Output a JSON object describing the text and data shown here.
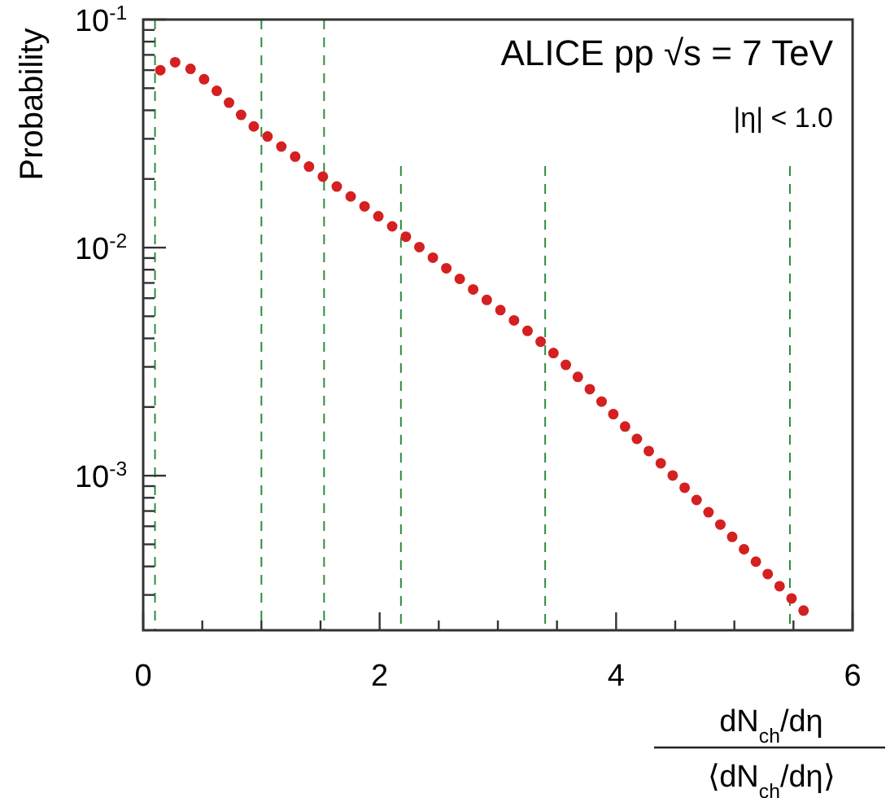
{
  "chart_data": {
    "type": "line",
    "ylabel": "Probability",
    "xlabel": "dN$_{ch}$/dη\n⟨dN$_{ch}$/dη⟩",
    "log": "y",
    "grid": false,
    "line_style": "dotted",
    "marker": "none",
    "xlim": [
      0,
      6
    ],
    "ylim": [
      0.00021,
      0.1
    ],
    "xticks": [
      0,
      {
        "value": 0.5,
        "label": null
      },
      {
        "value": 1,
        "label": null
      },
      {
        "value": 1.5,
        "label": null
      },
      2,
      {
        "value": 2.5,
        "label": null
      },
      {
        "value": 3,
        "label": null
      },
      {
        "value": 3.5,
        "label": null
      },
      4,
      {
        "value": 4.5,
        "label": null
      },
      {
        "value": 5,
        "label": null
      },
      {
        "value": 5.5,
        "label": null
      },
      6
    ],
    "yticks": [
      {
        "value": 0.0003,
        "label": null
      },
      {
        "value": 0.0004,
        "label": null
      },
      {
        "value": 0.0005,
        "label": null
      },
      {
        "value": 0.0006,
        "label": null
      },
      {
        "value": 0.0007,
        "label": null
      },
      {
        "value": 0.0008,
        "label": null
      },
      {
        "value": 0.0009,
        "label": null
      },
      {
        "value": 0.001,
        "label": "10$^{-3}$"
      },
      {
        "value": 0.002,
        "label": null
      },
      {
        "value": 0.003,
        "label": null
      },
      {
        "value": 0.004,
        "label": null
      },
      {
        "value": 0.005,
        "label": null
      },
      {
        "value": 0.006,
        "label": null
      },
      {
        "value": 0.007,
        "label": null
      },
      {
        "value": 0.008,
        "label": null
      },
      {
        "value": 0.009,
        "label": null
      },
      {
        "value": 0.01,
        "label": "10$^{-2}$"
      },
      {
        "value": 0.02,
        "label": null
      },
      {
        "value": 0.03,
        "label": null
      },
      {
        "value": 0.04,
        "label": null
      },
      {
        "value": 0.05,
        "label": null
      },
      {
        "value": 0.06,
        "label": null
      },
      {
        "value": 0.07,
        "label": null
      },
      {
        "value": 0.08,
        "label": null
      },
      {
        "value": 0.09,
        "label": null
      },
      {
        "value": 0.1,
        "label": "10$^{-1}$"
      }
    ],
    "x": [
      0.145,
      0.27,
      0.49,
      0.71,
      0.92,
      1.03,
      1.485,
      2.18,
      2.8,
      3.41,
      4.21,
      4.76,
      5.42,
      5.65
    ],
    "series": [
      {
        "color": "#d42020",
        "values": [
          0.06,
          0.065,
          0.056,
          0.044,
          0.0345,
          0.0313,
          0.0211,
          0.0116,
          0.0065,
          0.00368,
          0.00139,
          0.00071,
          0.000313,
          0.000237
        ]
      }
    ],
    "ref_lines": [
      {
        "axis": "x",
        "value": 0.1,
        "color": "#2e8b3e",
        "line_style": "dashed"
      },
      {
        "axis": "x",
        "value": 1.0,
        "color": "#2e8b3e",
        "line_style": "dashed"
      },
      {
        "axis": "x",
        "value": 1.53,
        "color": "#2e8b3e",
        "line_style": "dashed"
      },
      {
        "axis": "x",
        "value": 2.18,
        "color": "#2e8b3e",
        "line_style": "dashed"
      },
      {
        "axis": "x",
        "value": 3.4,
        "color": "#2e8b3e",
        "line_style": "dashed"
      },
      {
        "axis": "x",
        "value": 5.47,
        "color": "#2e8b3e",
        "line_style": "dashed"
      }
    ],
    "annotations": [
      "ALICE  pp √s = 7 TeV",
      "|η| < 1.0"
    ]
  }
}
